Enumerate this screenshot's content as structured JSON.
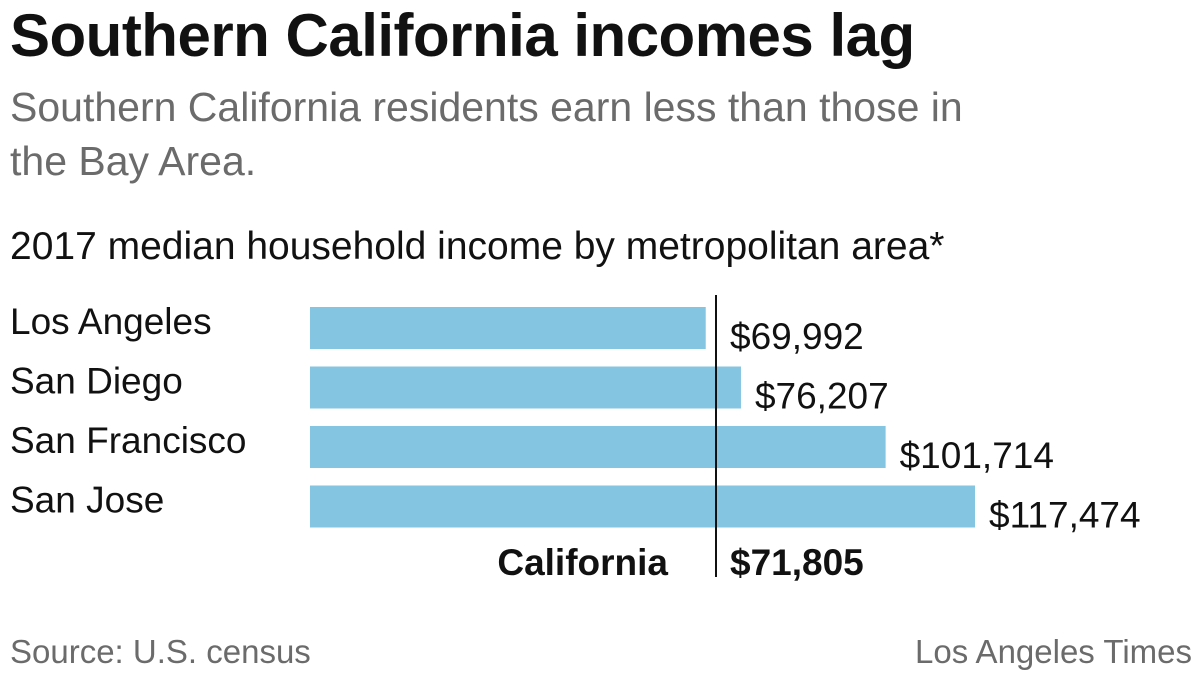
{
  "title": "Southern California incomes lag",
  "subtitle": "Southern California residents earn less than those in the Bay Area.",
  "chart_heading": "2017 median household income by metropolitan area*",
  "source": "Source: U.S. census",
  "credit": "Los Angeles Times",
  "colors": {
    "bar": "#84c5e2",
    "reference_line": "#111111"
  },
  "chart_data": {
    "type": "bar",
    "orientation": "horizontal",
    "title": "2017 median household income by metropolitan area*",
    "categories": [
      "Los Angeles",
      "San Diego",
      "San Francisco",
      "San Jose"
    ],
    "values": [
      69992,
      76207,
      101714,
      117474
    ],
    "value_labels": [
      "$69,992",
      "$76,207",
      "$101,714",
      "$117,474"
    ],
    "reference": {
      "label": "California",
      "value": 71805,
      "value_label": "$71,805"
    },
    "xlim": [
      0,
      117474
    ],
    "grid": false,
    "legend": "none"
  }
}
